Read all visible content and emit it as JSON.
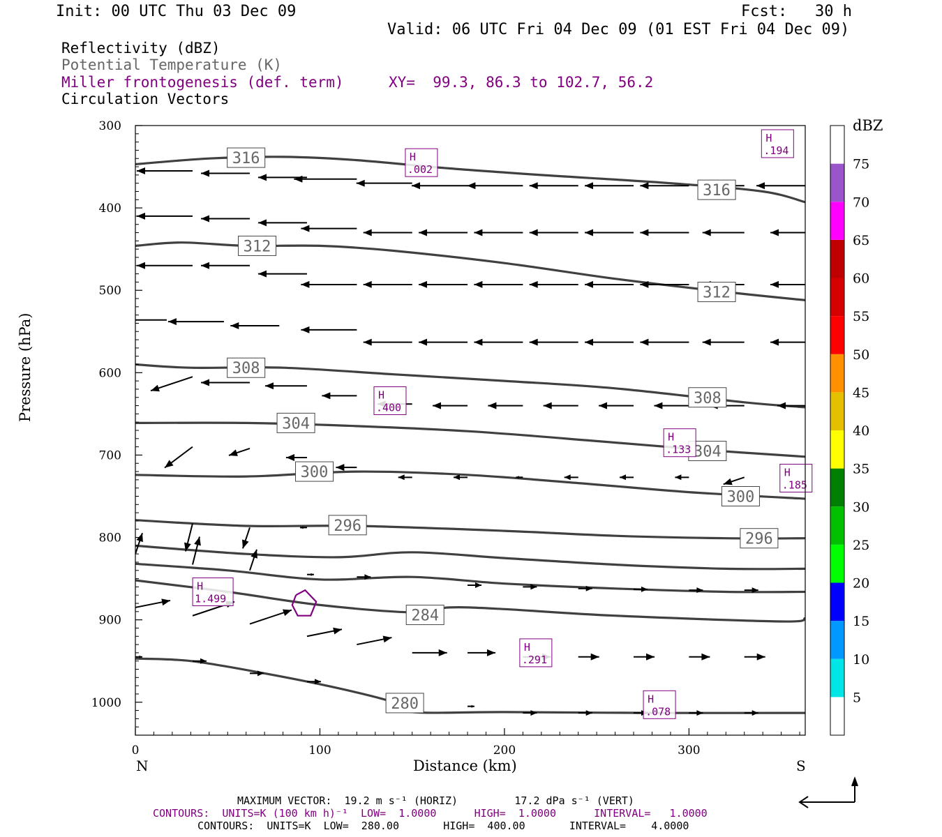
{
  "header": {
    "init": "Init: 00 UTC Thu 03 Dec 09",
    "fcst": "Fcst:   30 h",
    "valid": "Valid: 06 UTC Fri 04 Dec 09 (01 EST Fri 04 Dec 09)"
  },
  "legend": {
    "reflectivity": "Reflectivity (dBZ)",
    "theta": "Potential Temperature (K)",
    "frontogenesis": "Miller frontogenesis (def. term)",
    "xy": "XY=  99.3, 86.3 to 102.7, 56.2",
    "vectors": "Circulation Vectors"
  },
  "colors": {
    "theta": "#404040",
    "frontogenesis": "#800080",
    "label_theta": "#666666",
    "label_fronto": "#800080"
  },
  "chart_data": {
    "type": "cross-section",
    "xlabel": "Distance (km)",
    "ylabel": "Pressure (hPa)",
    "xlim": [
      0,
      363
    ],
    "ylim": [
      1040,
      300
    ],
    "y_scale": "linear",
    "x_ticks": [
      0,
      100,
      200,
      300
    ],
    "y_ticks": [
      300,
      400,
      500,
      600,
      700,
      800,
      900,
      1000
    ],
    "x_end_labels": {
      "left": "N",
      "right": "S"
    },
    "theta_labels": [
      {
        "value": "316",
        "x": 60,
        "p": 339
      },
      {
        "value": "316",
        "x": 315,
        "p": 378
      },
      {
        "value": "312",
        "x": 66,
        "p": 446
      },
      {
        "value": "312",
        "x": 315,
        "p": 502
      },
      {
        "value": "308",
        "x": 60,
        "p": 594
      },
      {
        "value": "308",
        "x": 310,
        "p": 630
      },
      {
        "value": "304",
        "x": 87,
        "p": 661
      },
      {
        "value": "304",
        "x": 310,
        "p": 695
      },
      {
        "value": "300",
        "x": 97,
        "p": 720
      },
      {
        "value": "300",
        "x": 328,
        "p": 750
      },
      {
        "value": "296",
        "x": 115,
        "p": 785
      },
      {
        "value": "296",
        "x": 338,
        "p": 801
      },
      {
        "value": "284",
        "x": 157,
        "p": 894
      },
      {
        "value": "280",
        "x": 146,
        "p": 1001
      }
    ],
    "theta_contours": [
      {
        "level": 316,
        "points": [
          [
            0,
            347
          ],
          [
            40,
            340
          ],
          [
            80,
            338
          ],
          [
            120,
            342
          ],
          [
            170,
            352
          ],
          [
            220,
            360
          ],
          [
            290,
            370
          ],
          [
            340,
            380
          ],
          [
            363,
            393
          ]
        ]
      },
      {
        "level": 312,
        "points": [
          [
            0,
            446
          ],
          [
            25,
            442
          ],
          [
            60,
            446
          ],
          [
            100,
            446
          ],
          [
            140,
            452
          ],
          [
            200,
            467
          ],
          [
            260,
            486
          ],
          [
            320,
            502
          ],
          [
            363,
            512
          ]
        ]
      },
      {
        "level": 308,
        "points": [
          [
            0,
            590
          ],
          [
            30,
            594
          ],
          [
            80,
            594
          ],
          [
            140,
            602
          ],
          [
            200,
            610
          ],
          [
            260,
            619
          ],
          [
            330,
            636
          ],
          [
            363,
            642
          ]
        ]
      },
      {
        "level": 304,
        "points": [
          [
            0,
            661
          ],
          [
            60,
            661
          ],
          [
            110,
            664
          ],
          [
            180,
            671
          ],
          [
            250,
            683
          ],
          [
            310,
            694
          ],
          [
            363,
            702
          ]
        ]
      },
      {
        "level": 300,
        "points": [
          [
            0,
            724
          ],
          [
            60,
            726
          ],
          [
            120,
            720
          ],
          [
            180,
            724
          ],
          [
            240,
            734
          ],
          [
            300,
            745
          ],
          [
            363,
            753
          ]
        ]
      },
      {
        "level": 296,
        "points": [
          [
            0,
            779
          ],
          [
            60,
            786
          ],
          [
            120,
            786
          ],
          [
            200,
            792
          ],
          [
            260,
            798
          ],
          [
            320,
            801
          ],
          [
            363,
            801
          ]
        ]
      },
      {
        "level": 292,
        "points": [
          [
            0,
            810
          ],
          [
            60,
            820
          ],
          [
            110,
            824
          ],
          [
            150,
            818
          ],
          [
            200,
            825
          ],
          [
            260,
            833
          ],
          [
            320,
            838
          ],
          [
            363,
            838
          ]
        ]
      },
      {
        "level": 288,
        "points": [
          [
            0,
            832
          ],
          [
            50,
            840
          ],
          [
            100,
            851
          ],
          [
            150,
            848
          ],
          [
            200,
            856
          ],
          [
            260,
            862
          ],
          [
            320,
            866
          ],
          [
            363,
            866
          ]
        ]
      },
      {
        "level": 284,
        "points": [
          [
            0,
            852
          ],
          [
            50,
            866
          ],
          [
            100,
            882
          ],
          [
            150,
            891
          ],
          [
            170,
            885
          ],
          [
            200,
            887
          ],
          [
            260,
            895
          ],
          [
            350,
            902
          ],
          [
            363,
            898
          ]
        ]
      },
      {
        "level": 280,
        "points": [
          [
            0,
            947
          ],
          [
            30,
            950
          ],
          [
            70,
            965
          ],
          [
            110,
            983
          ],
          [
            140,
            1000
          ],
          [
            150,
            1012
          ],
          [
            200,
            1012
          ],
          [
            280,
            1013
          ],
          [
            363,
            1013
          ]
        ]
      }
    ],
    "frontogenesis_maxima": [
      {
        "label": "H",
        "value": ".194",
        "x": 348,
        "p": 322
      },
      {
        "label": "H",
        "value": ".002",
        "x": 155,
        "p": 345
      },
      {
        "label": "H",
        "value": ".400",
        "x": 138,
        "p": 634
      },
      {
        "label": "H",
        "value": ".133",
        "x": 295,
        "p": 685
      },
      {
        "label": "H",
        "value": ".185",
        "x": 358,
        "p": 728
      },
      {
        "label": "H",
        "value": "1.499",
        "x": 42,
        "p": 866
      },
      {
        "label": "H",
        "value": ".291",
        "x": 217,
        "p": 940
      },
      {
        "label": "H",
        "value": ".078",
        "x": 284,
        "p": 1003
      }
    ],
    "frontogenesis_contours": [
      {
        "points": [
          [
            87,
            870
          ],
          [
            92,
            864
          ],
          [
            98,
            878
          ],
          [
            95,
            895
          ],
          [
            88,
            895
          ],
          [
            85,
            882
          ],
          [
            87,
            870
          ]
        ]
      }
    ],
    "vectors": [
      {
        "x": 0,
        "p": 347,
        "u": -9,
        "w": 0
      },
      {
        "x": 31,
        "p": 355,
        "u": -8,
        "w": 0
      },
      {
        "x": 62,
        "p": 358,
        "u": -7,
        "w": 0
      },
      {
        "x": 93,
        "p": 363,
        "u": -7,
        "w": 0
      },
      {
        "x": 120,
        "p": 365,
        "u": -9,
        "w": 0
      },
      {
        "x": 150,
        "p": 370,
        "u": -8,
        "w": 0
      },
      {
        "x": 180,
        "p": 373,
        "u": -8,
        "w": 0
      },
      {
        "x": 210,
        "p": 373,
        "u": -8,
        "w": 0
      },
      {
        "x": 240,
        "p": 373,
        "u": -7,
        "w": 0
      },
      {
        "x": 270,
        "p": 373,
        "u": -7,
        "w": 0
      },
      {
        "x": 300,
        "p": 373,
        "u": -7,
        "w": 0
      },
      {
        "x": 330,
        "p": 373,
        "u": -6,
        "w": 0
      },
      {
        "x": 363,
        "p": 373,
        "u": -7,
        "w": 0
      },
      {
        "x": 0,
        "p": 403,
        "u": -9,
        "w": 0
      },
      {
        "x": 31,
        "p": 410,
        "u": -8,
        "w": 0
      },
      {
        "x": 62,
        "p": 413,
        "u": -7,
        "w": 0
      },
      {
        "x": 93,
        "p": 418,
        "u": -7,
        "w": 0
      },
      {
        "x": 120,
        "p": 425,
        "u": -8,
        "w": 0
      },
      {
        "x": 150,
        "p": 430,
        "u": -7,
        "w": 0
      },
      {
        "x": 180,
        "p": 430,
        "u": -7,
        "w": 0
      },
      {
        "x": 210,
        "p": 430,
        "u": -7,
        "w": 0
      },
      {
        "x": 240,
        "p": 430,
        "u": -7,
        "w": 0
      },
      {
        "x": 270,
        "p": 430,
        "u": -7,
        "w": 0
      },
      {
        "x": 300,
        "p": 430,
        "u": -7,
        "w": 0
      },
      {
        "x": 330,
        "p": 430,
        "u": -6,
        "w": 0
      },
      {
        "x": 363,
        "p": 430,
        "u": -5,
        "w": 0
      },
      {
        "x": 0,
        "p": 467,
        "u": -9,
        "w": 0
      },
      {
        "x": 31,
        "p": 470,
        "u": -8,
        "w": 0
      },
      {
        "x": 62,
        "p": 470,
        "u": -7,
        "w": 0
      },
      {
        "x": 93,
        "p": 480,
        "u": -7,
        "w": 0
      },
      {
        "x": 120,
        "p": 493,
        "u": -8,
        "w": 0
      },
      {
        "x": 150,
        "p": 493,
        "u": -7,
        "w": 0
      },
      {
        "x": 180,
        "p": 493,
        "u": -7,
        "w": 0
      },
      {
        "x": 210,
        "p": 493,
        "u": -7,
        "w": 0
      },
      {
        "x": 240,
        "p": 493,
        "u": -7,
        "w": 0
      },
      {
        "x": 270,
        "p": 493,
        "u": -7,
        "w": 0
      },
      {
        "x": 300,
        "p": 493,
        "u": -7,
        "w": 0
      },
      {
        "x": 330,
        "p": 493,
        "u": -6,
        "w": 0
      },
      {
        "x": 363,
        "p": 493,
        "u": -5,
        "w": 0
      },
      {
        "x": 17,
        "p": 536,
        "u": -8,
        "w": 0
      },
      {
        "x": 48,
        "p": 538,
        "u": -8,
        "w": 0
      },
      {
        "x": 78,
        "p": 543,
        "u": -7,
        "w": 0
      },
      {
        "x": 120,
        "p": 548,
        "u": -8,
        "w": 0
      },
      {
        "x": 150,
        "p": 563,
        "u": -7,
        "w": 0
      },
      {
        "x": 180,
        "p": 563,
        "u": -7,
        "w": 0
      },
      {
        "x": 210,
        "p": 563,
        "u": -7,
        "w": 0
      },
      {
        "x": 240,
        "p": 563,
        "u": -7,
        "w": 0
      },
      {
        "x": 270,
        "p": 563,
        "u": -7,
        "w": 0
      },
      {
        "x": 300,
        "p": 563,
        "u": -7,
        "w": 0
      },
      {
        "x": 330,
        "p": 563,
        "u": -6,
        "w": 0
      },
      {
        "x": 363,
        "p": 563,
        "u": -5,
        "w": 0
      },
      {
        "x": 31,
        "p": 605,
        "u": -6,
        "w": 2
      },
      {
        "x": 62,
        "p": 612,
        "u": -7,
        "w": 0
      },
      {
        "x": 93,
        "p": 616,
        "u": -6,
        "w": 0
      },
      {
        "x": 120,
        "p": 628,
        "u": -5,
        "w": 0
      },
      {
        "x": 150,
        "p": 638,
        "u": -5,
        "w": 0
      },
      {
        "x": 180,
        "p": 640,
        "u": -5,
        "w": 0
      },
      {
        "x": 210,
        "p": 640,
        "u": -5,
        "w": 0
      },
      {
        "x": 240,
        "p": 640,
        "u": -5,
        "w": 0
      },
      {
        "x": 270,
        "p": 640,
        "u": -5,
        "w": 0
      },
      {
        "x": 300,
        "p": 640,
        "u": -5,
        "w": 0
      },
      {
        "x": 330,
        "p": 640,
        "u": -5,
        "w": 0
      },
      {
        "x": 363,
        "p": 640,
        "u": -4,
        "w": 0
      },
      {
        "x": 31,
        "p": 690,
        "u": -4,
        "w": 3
      },
      {
        "x": 62,
        "p": 692,
        "u": -3,
        "w": 1
      },
      {
        "x": 93,
        "p": 703,
        "u": -3,
        "w": 0
      },
      {
        "x": 120,
        "p": 715,
        "u": -3,
        "w": 0
      },
      {
        "x": 150,
        "p": 727,
        "u": -2,
        "w": 0
      },
      {
        "x": 180,
        "p": 727,
        "u": -2,
        "w": 0
      },
      {
        "x": 210,
        "p": 727,
        "u": -1,
        "w": 0
      },
      {
        "x": 240,
        "p": 727,
        "u": -2,
        "w": 0
      },
      {
        "x": 270,
        "p": 727,
        "u": -2,
        "w": 0
      },
      {
        "x": 300,
        "p": 727,
        "u": -2,
        "w": 0
      },
      {
        "x": 330,
        "p": 727,
        "u": -3,
        "w": 1
      },
      {
        "x": 31,
        "p": 783,
        "u": -1,
        "w": 4
      },
      {
        "x": 62,
        "p": 788,
        "u": -1,
        "w": 3
      },
      {
        "x": 93,
        "p": 788,
        "u": -1,
        "w": 0
      },
      {
        "x": 120,
        "p": 795,
        "u": -1,
        "w": 0
      },
      {
        "x": 0,
        "p": 820,
        "u": 1,
        "w": -3
      },
      {
        "x": 31,
        "p": 833,
        "u": 1,
        "w": -4
      },
      {
        "x": 62,
        "p": 840,
        "u": 1,
        "w": -3
      },
      {
        "x": 93,
        "p": 845,
        "u": 1,
        "w": 0
      },
      {
        "x": 120,
        "p": 848,
        "u": 2,
        "w": 0
      },
      {
        "x": 180,
        "p": 858,
        "u": 2,
        "w": 0
      },
      {
        "x": 210,
        "p": 860,
        "u": 2,
        "w": 0
      },
      {
        "x": 240,
        "p": 862,
        "u": 2,
        "w": 0
      },
      {
        "x": 270,
        "p": 863,
        "u": 2,
        "w": 0
      },
      {
        "x": 300,
        "p": 864,
        "u": 2,
        "w": 0
      },
      {
        "x": 330,
        "p": 864,
        "u": 2,
        "w": 0
      },
      {
        "x": 0,
        "p": 885,
        "u": 5,
        "w": -1
      },
      {
        "x": 31,
        "p": 895,
        "u": 6,
        "w": -2
      },
      {
        "x": 62,
        "p": 905,
        "u": 6,
        "w": -2
      },
      {
        "x": 93,
        "p": 920,
        "u": 5,
        "w": -1
      },
      {
        "x": 120,
        "p": 930,
        "u": 5,
        "w": -1
      },
      {
        "x": 150,
        "p": 940,
        "u": 5,
        "w": 0
      },
      {
        "x": 180,
        "p": 940,
        "u": 4,
        "w": 0
      },
      {
        "x": 210,
        "p": 945,
        "u": 4,
        "w": 0
      },
      {
        "x": 240,
        "p": 945,
        "u": 3,
        "w": 0
      },
      {
        "x": 270,
        "p": 945,
        "u": 3,
        "w": 0
      },
      {
        "x": 300,
        "p": 945,
        "u": 3,
        "w": 0
      },
      {
        "x": 330,
        "p": 945,
        "u": 3,
        "w": 0
      },
      {
        "x": 0,
        "p": 945,
        "u": 1,
        "w": 0
      },
      {
        "x": 31,
        "p": 950,
        "u": 2,
        "w": 0
      },
      {
        "x": 62,
        "p": 965,
        "u": 2,
        "w": 0
      },
      {
        "x": 93,
        "p": 975,
        "u": 2,
        "w": 0
      },
      {
        "x": 180,
        "p": 1005,
        "u": 1,
        "w": 0
      },
      {
        "x": 210,
        "p": 1013,
        "u": 2,
        "w": 0
      },
      {
        "x": 240,
        "p": 1013,
        "u": 2,
        "w": 0
      },
      {
        "x": 270,
        "p": 1013,
        "u": 2,
        "w": 0
      },
      {
        "x": 300,
        "p": 1013,
        "u": 2,
        "w": 0
      },
      {
        "x": 330,
        "p": 1013,
        "u": 2,
        "w": 0
      }
    ],
    "colorbar": {
      "title": "dBZ",
      "ticks": [
        "5",
        "10",
        "15",
        "20",
        "25",
        "30",
        "35",
        "40",
        "45",
        "50",
        "55",
        "60",
        "65",
        "70",
        "75"
      ],
      "colors": [
        "#ffffff",
        "#00e5e5",
        "#0099ff",
        "#0000ff",
        "#00ff00",
        "#00c000",
        "#008000",
        "#ffff00",
        "#e5c000",
        "#ff9000",
        "#ff0000",
        "#d60000",
        "#c00000",
        "#ff00ff",
        "#9955c9",
        "#ffffff"
      ]
    }
  },
  "footer": {
    "max_vector": "MAXIMUM VECTOR:  19.2 m s⁻¹ (HORIZ)         17.2 dPa s⁻¹ (VERT)",
    "contours_fronto": "CONTOURS:  UNITS=K (100 km h)⁻¹  LOW=  1.0000      HIGH=  1.0000      INTERVAL=   1.0000",
    "contours_theta": "CONTOURS:  UNITS=K  LOW=  280.00       HIGH=  400.00       INTERVAL=    4.0000"
  }
}
